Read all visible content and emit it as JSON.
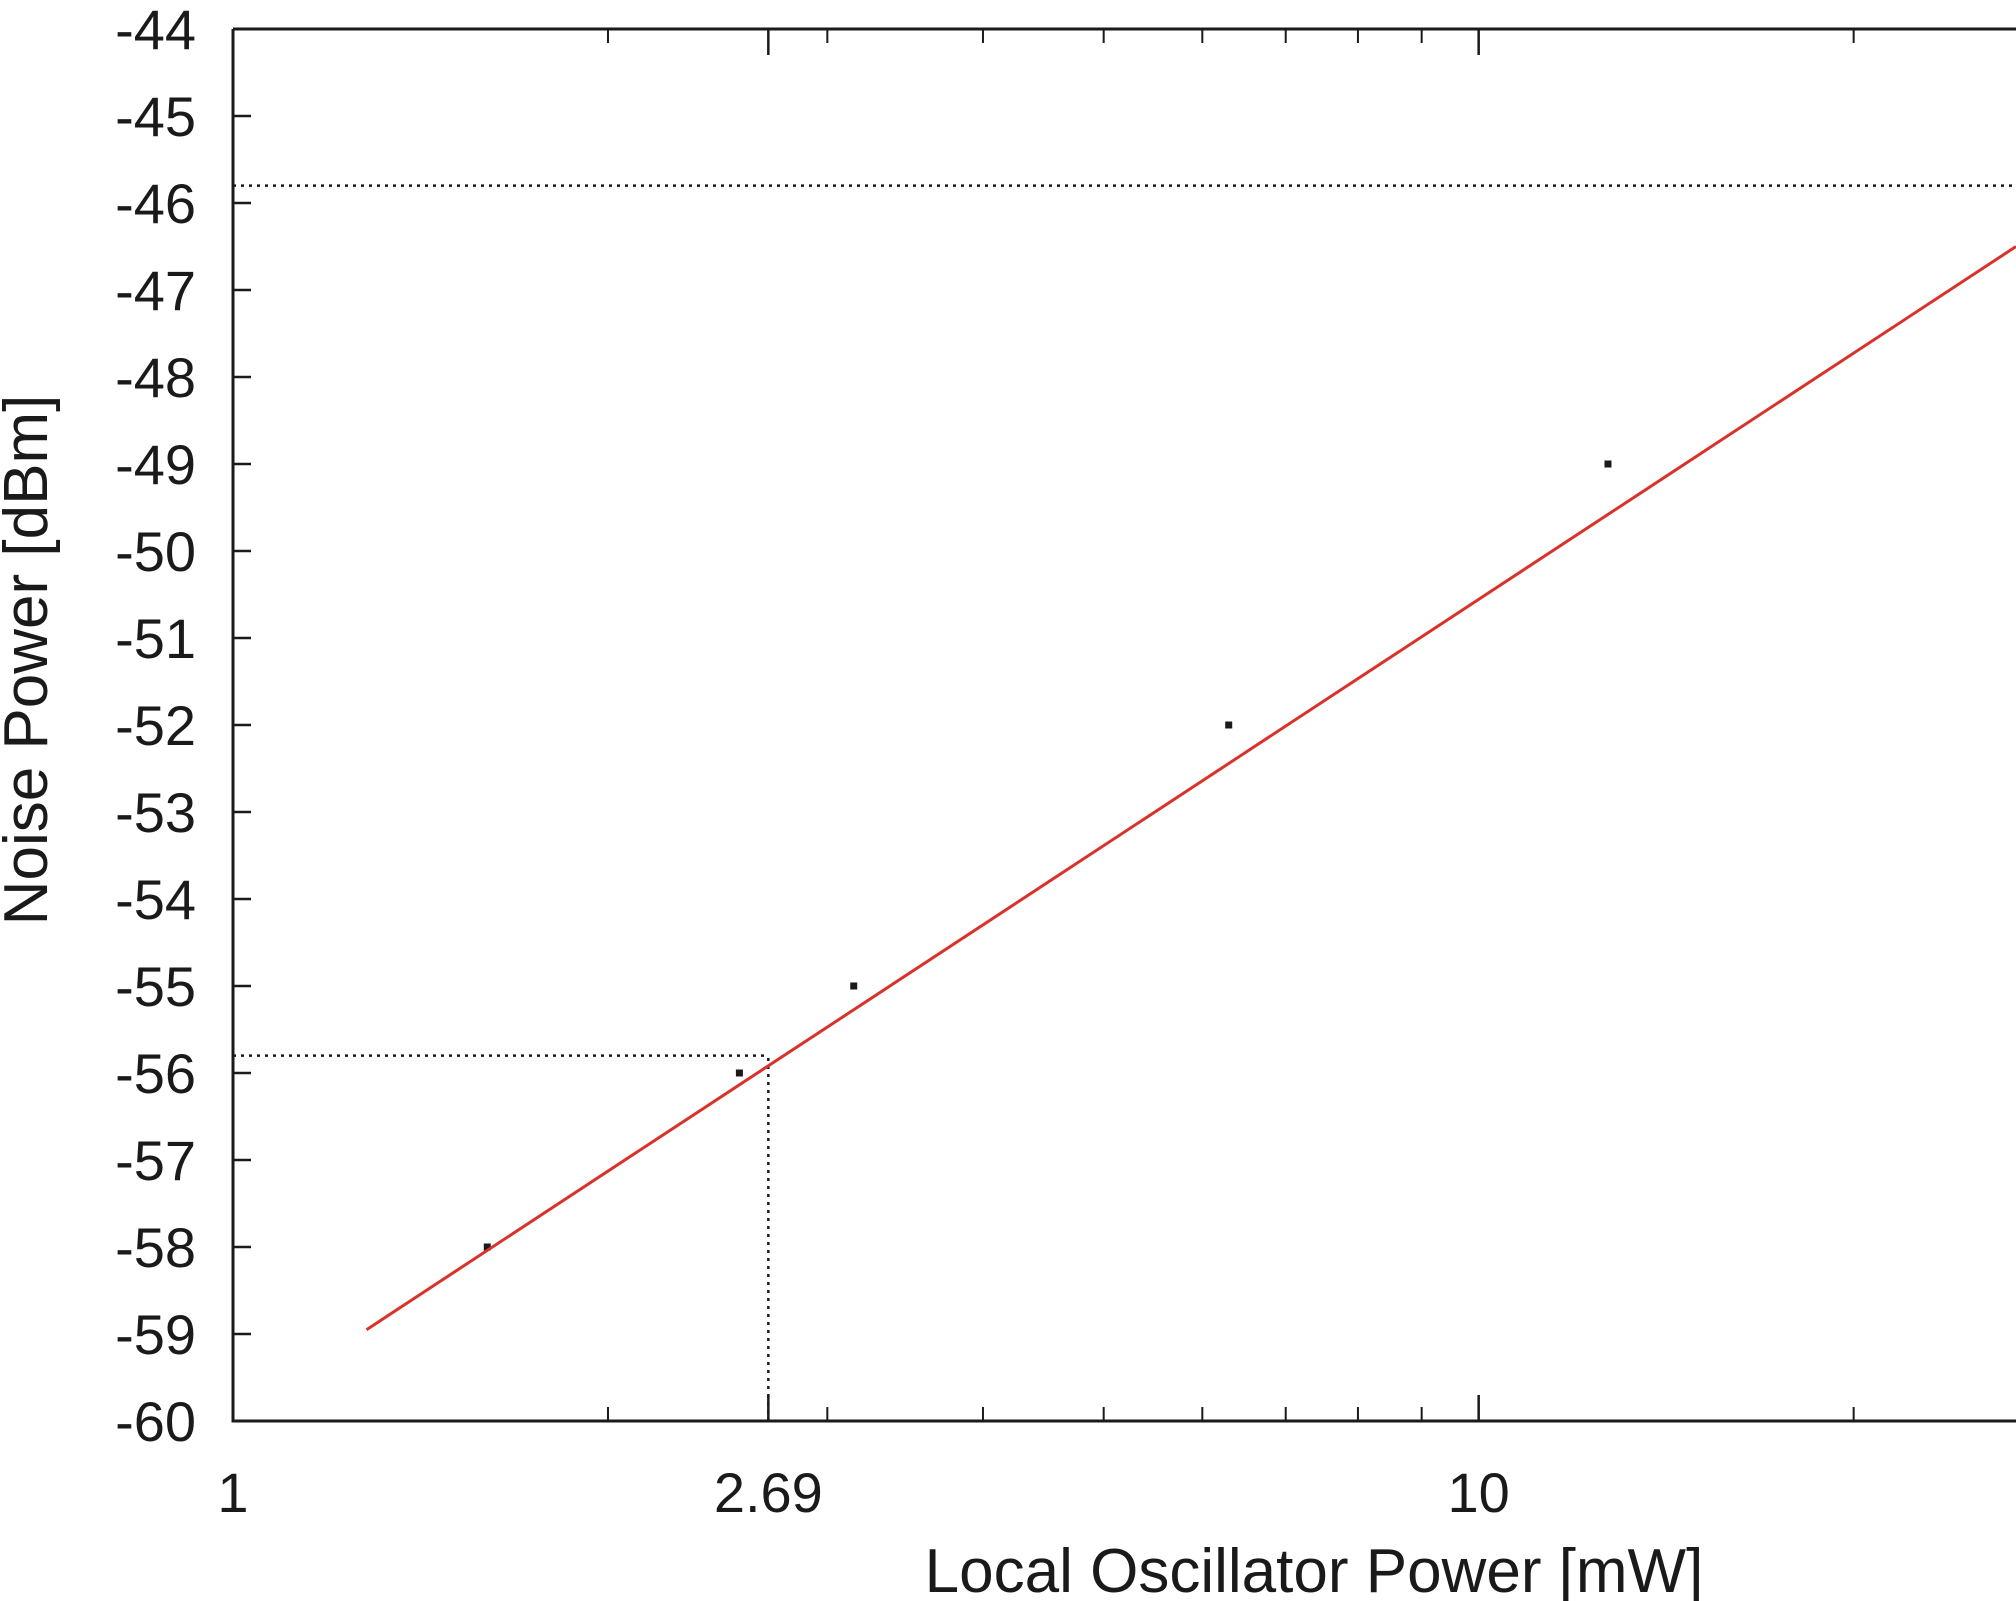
{
  "chart_data": {
    "type": "line",
    "xlabel": "Local Oscillator Power [mW]",
    "ylabel": "Noise Power [dBm]",
    "x_scale": "log",
    "xlim": [
      1,
      27
    ],
    "ylim": [
      -60,
      -44
    ],
    "x_ticks": [
      {
        "value": 1,
        "label": "1"
      },
      {
        "value": 2.69,
        "label": "2.69"
      },
      {
        "value": 10,
        "label": "10"
      }
    ],
    "y_ticks": [
      {
        "value": -44,
        "label": "-44"
      },
      {
        "value": -45,
        "label": "-45"
      },
      {
        "value": -46,
        "label": "-46"
      },
      {
        "value": -47,
        "label": "-47"
      },
      {
        "value": -48,
        "label": "-48"
      },
      {
        "value": -49,
        "label": "-49"
      },
      {
        "value": -50,
        "label": "-50"
      },
      {
        "value": -51,
        "label": "-51"
      },
      {
        "value": -52,
        "label": "-52"
      },
      {
        "value": -53,
        "label": "-53"
      },
      {
        "value": -54,
        "label": "-54"
      },
      {
        "value": -55,
        "label": "-55"
      },
      {
        "value": -56,
        "label": "-56"
      },
      {
        "value": -57,
        "label": "-57"
      },
      {
        "value": -58,
        "label": "-58"
      },
      {
        "value": -59,
        "label": "-59"
      },
      {
        "value": -60,
        "label": "-60"
      }
    ],
    "minor_x_ticks": [
      2,
      3,
      4,
      5,
      6,
      7,
      8,
      9,
      20
    ],
    "series": [
      {
        "type": "scatter",
        "color": "#1a1a1a",
        "x": [
          1.6,
          2.55,
          3.15,
          6.3,
          12.7
        ],
        "y": [
          -58,
          -56,
          -55,
          -52,
          -49
        ]
      },
      {
        "type": "line",
        "color": "#d9322a",
        "x": [
          1.28,
          27
        ],
        "y": [
          -58.95,
          -46.5
        ]
      }
    ],
    "reference_lines": [
      {
        "orientation": "horizontal",
        "y": -45.8,
        "x_from": 1,
        "x_to": 27,
        "style": "dotted"
      },
      {
        "orientation": "horizontal",
        "y": -55.8,
        "x_from": 1,
        "x_to": 2.69,
        "style": "dotted"
      },
      {
        "orientation": "vertical",
        "x": 2.69,
        "y_from": -60,
        "y_to": -55.8,
        "style": "dotted"
      }
    ],
    "grid": false,
    "legend": "none"
  }
}
